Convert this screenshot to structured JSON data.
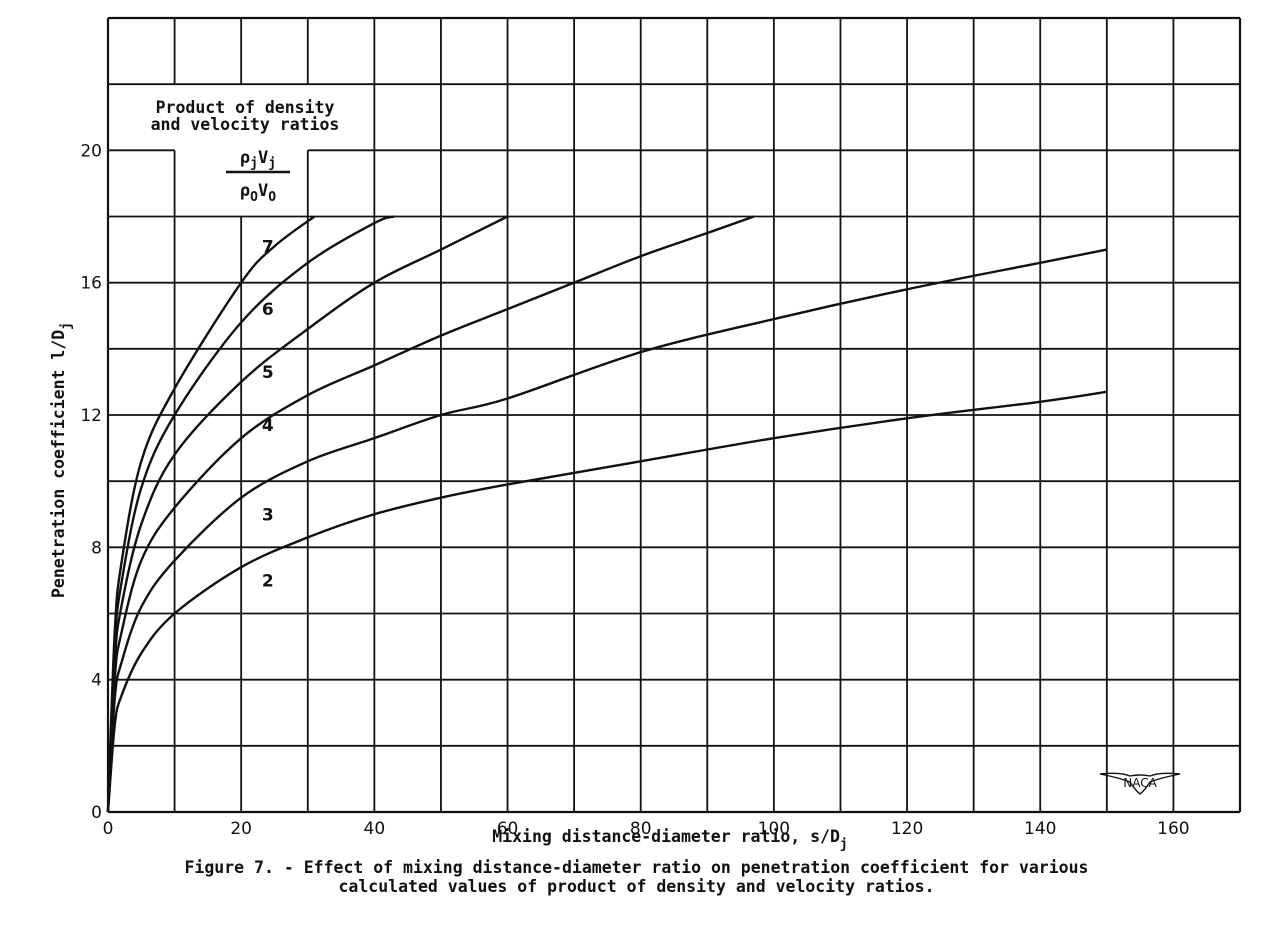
{
  "chart_data": {
    "type": "line",
    "title": "Figure 7. - Effect of mixing distance-diameter ratio on penetration coefficient for various calculated values of product of density and velocity ratios.",
    "xlabel": "Mixing distance-diameter ratio,  s/D_j",
    "ylabel": "Penetration coefficient  l/D_j",
    "xlim": [
      0,
      170
    ],
    "ylim": [
      0,
      24
    ],
    "x_ticks": [
      0,
      20,
      40,
      60,
      80,
      100,
      120,
      140,
      160
    ],
    "y_ticks": [
      0,
      4,
      8,
      12,
      16,
      20
    ],
    "grid": true,
    "grid_step": {
      "x": 10,
      "y": 2
    },
    "legend": {
      "title_line1": "Product of density",
      "title_line2": "and velocity ratios",
      "formula_numerator": "ρjVj",
      "formula_denominator": "ρ0V0",
      "position": "upper-left"
    },
    "series": [
      {
        "name": "2",
        "label_at": [
          24,
          7.0
        ],
        "points": [
          [
            0,
            0
          ],
          [
            1,
            2.6
          ],
          [
            2,
            3.5
          ],
          [
            5,
            4.8
          ],
          [
            10,
            6.0
          ],
          [
            20,
            7.4
          ],
          [
            30,
            8.3
          ],
          [
            40,
            9.0
          ],
          [
            50,
            9.5
          ],
          [
            60,
            9.9
          ],
          [
            80,
            10.6
          ],
          [
            100,
            11.3
          ],
          [
            120,
            11.9
          ],
          [
            140,
            12.4
          ],
          [
            150,
            12.7
          ]
        ]
      },
      {
        "name": "3",
        "label_at": [
          24,
          9.0
        ],
        "points": [
          [
            0,
            0
          ],
          [
            1,
            3.4
          ],
          [
            2,
            4.5
          ],
          [
            5,
            6.2
          ],
          [
            10,
            7.6
          ],
          [
            20,
            9.5
          ],
          [
            30,
            10.6
          ],
          [
            40,
            11.3
          ],
          [
            50,
            12.0
          ],
          [
            60,
            12.5
          ],
          [
            80,
            13.9
          ],
          [
            100,
            14.9
          ],
          [
            120,
            15.8
          ],
          [
            140,
            16.6
          ],
          [
            150,
            17.0
          ]
        ]
      },
      {
        "name": "4",
        "label_at": [
          24,
          11.7
        ],
        "points": [
          [
            0,
            0
          ],
          [
            1,
            4.0
          ],
          [
            2,
            5.4
          ],
          [
            5,
            7.6
          ],
          [
            10,
            9.2
          ],
          [
            20,
            11.3
          ],
          [
            30,
            12.6
          ],
          [
            40,
            13.5
          ],
          [
            50,
            14.4
          ],
          [
            60,
            15.2
          ],
          [
            70,
            16.0
          ],
          [
            80,
            16.8
          ],
          [
            90,
            17.5
          ],
          [
            97,
            18.0
          ]
        ]
      },
      {
        "name": "5",
        "label_at": [
          24,
          13.3
        ],
        "points": [
          [
            0,
            0
          ],
          [
            1,
            4.5
          ],
          [
            2,
            6.2
          ],
          [
            5,
            8.7
          ],
          [
            10,
            10.8
          ],
          [
            20,
            13.0
          ],
          [
            30,
            14.6
          ],
          [
            40,
            16.0
          ],
          [
            50,
            17.0
          ],
          [
            60,
            18.0
          ]
        ]
      },
      {
        "name": "6",
        "label_at": [
          24,
          15.2
        ],
        "points": [
          [
            0,
            0
          ],
          [
            1,
            5.0
          ],
          [
            2,
            6.9
          ],
          [
            5,
            9.8
          ],
          [
            10,
            12.0
          ],
          [
            20,
            14.8
          ],
          [
            30,
            16.6
          ],
          [
            40,
            17.8
          ],
          [
            43,
            18.0
          ]
        ]
      },
      {
        "name": "7",
        "label_at": [
          24,
          17.1
        ],
        "points": [
          [
            0,
            0
          ],
          [
            1,
            5.4
          ],
          [
            2,
            7.5
          ],
          [
            5,
            10.6
          ],
          [
            10,
            12.8
          ],
          [
            20,
            16.0
          ],
          [
            25,
            17.1
          ],
          [
            31,
            18.0
          ]
        ]
      }
    ]
  },
  "logo": {
    "text": "NACA"
  },
  "caption": {
    "line1": "Figure 7. - Effect of mixing distance-diameter ratio on penetration coefficient for various",
    "line2": "calculated values of product of density and velocity ratios."
  },
  "axis_text": {
    "x_main": "Mixing distance-diameter ratio,  s/D",
    "x_sub": "j",
    "y_main": "Penetration coefficient  l/D",
    "y_sub": "j"
  }
}
